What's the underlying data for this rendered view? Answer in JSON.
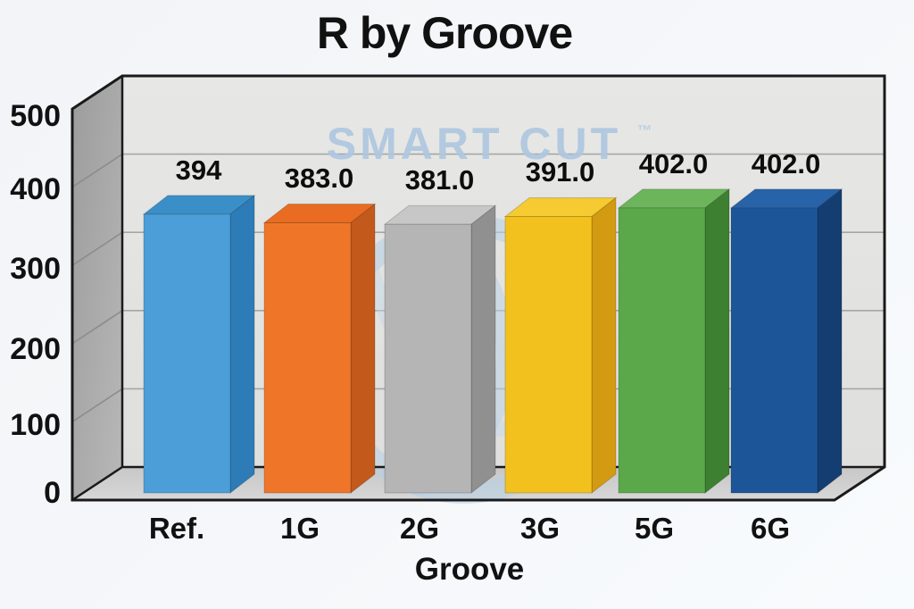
{
  "title": "R by Groove",
  "watermark": {
    "text": "SMART CUT",
    "tm": "™",
    "color": "#aec7e0"
  },
  "chart_data": {
    "type": "bar",
    "style": "3d",
    "title": "R by Groove",
    "xlabel": "Groove",
    "ylabel": "",
    "ylim": [
      0,
      500
    ],
    "ytick_labels": [
      "0",
      "100",
      "200",
      "300",
      "400",
      "500"
    ],
    "grid": true,
    "legend": false,
    "categories": [
      "Ref.",
      "1G",
      "2G",
      "3G",
      "5G",
      "6G"
    ],
    "values": [
      394,
      383,
      381,
      391,
      402,
      402
    ],
    "value_labels": [
      "394",
      "383.0",
      "381.0",
      "391.0",
      "402.0",
      "402.0"
    ],
    "bar_colors": [
      {
        "name": "blue",
        "front": "#4b9ed7",
        "side": "#2d7cb7",
        "top": "#3a8fc8"
      },
      {
        "name": "orange",
        "front": "#ef7629",
        "side": "#c4591c",
        "top": "#e96c22"
      },
      {
        "name": "silver",
        "front": "#b5b5b5",
        "side": "#909090",
        "top": "#c7c7c7"
      },
      {
        "name": "yellow",
        "front": "#f3c11d",
        "side": "#d39b11",
        "top": "#f6ca31"
      },
      {
        "name": "green",
        "front": "#5ba84a",
        "side": "#3e8032",
        "top": "#6db55b"
      },
      {
        "name": "navy",
        "front": "#1d5698",
        "side": "#143e72",
        "top": "#2763a8"
      }
    ],
    "wall_colors": {
      "back": "#e3e3e1",
      "left": "#a6a6a6",
      "floor": "#cecece",
      "gridline": "#a6a6a6"
    }
  }
}
